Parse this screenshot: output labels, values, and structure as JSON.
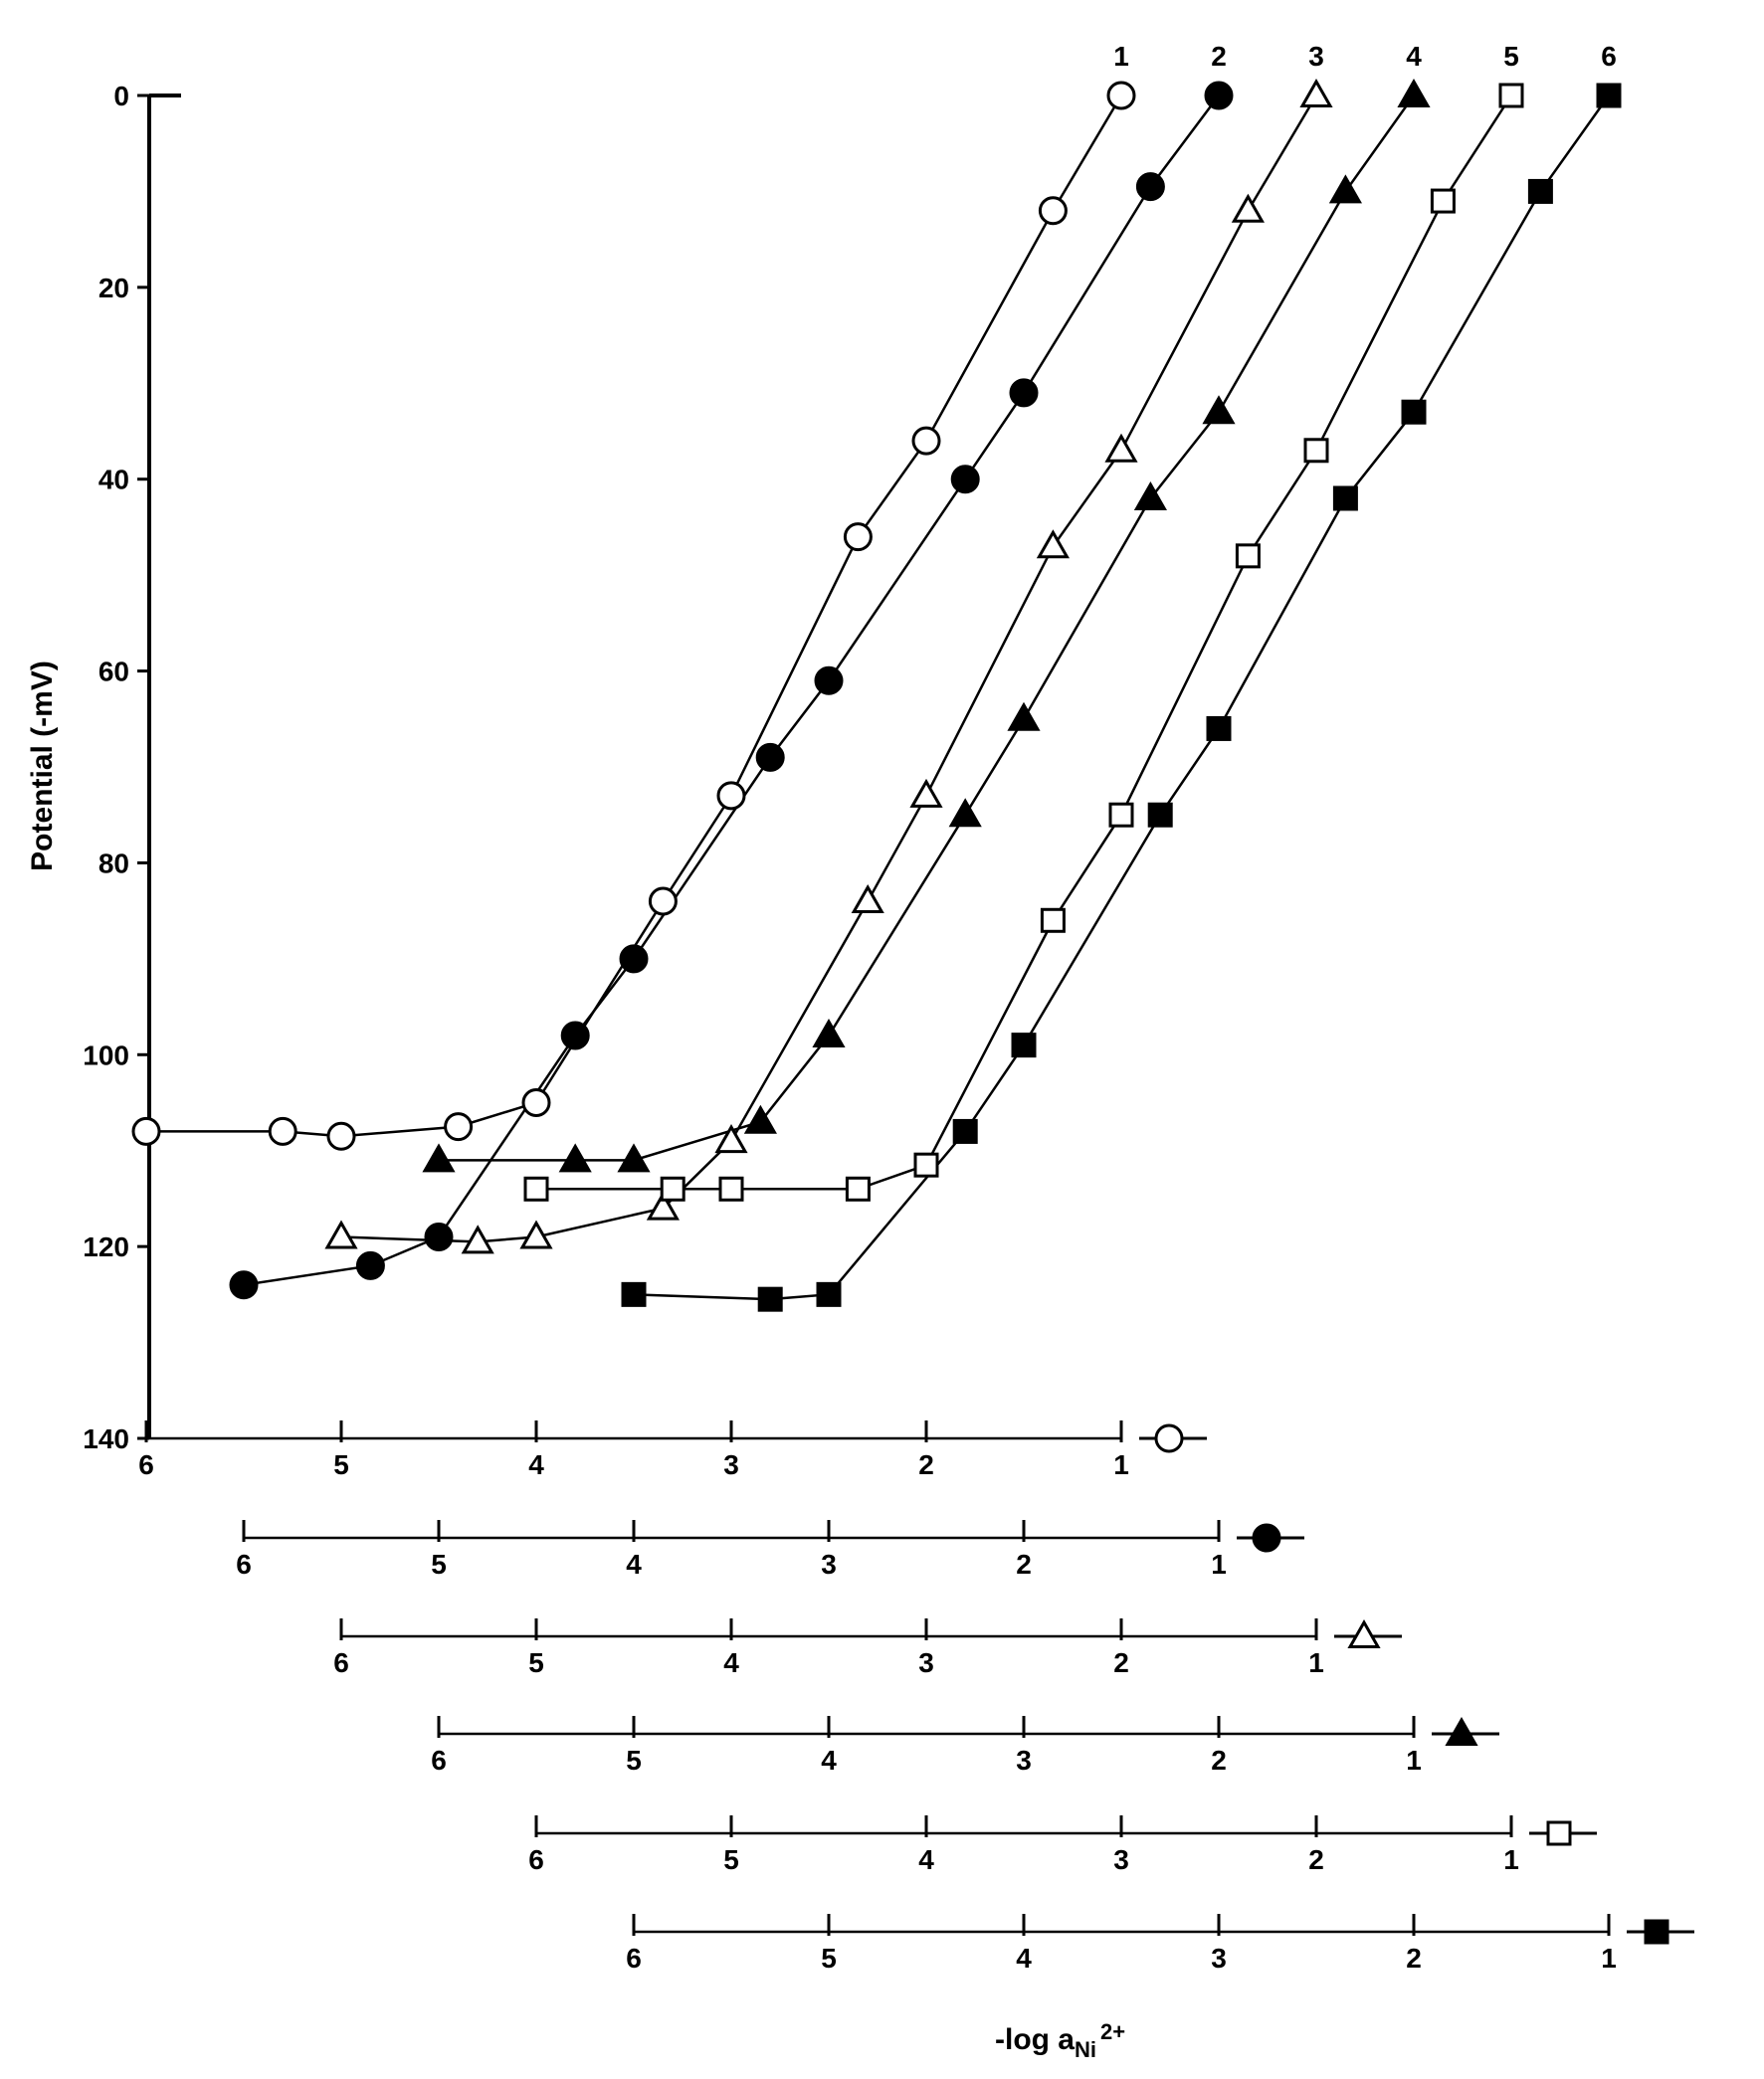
{
  "chart_data": {
    "type": "scatter",
    "title": "",
    "ylabel": "Potential (-mV)",
    "xlabel": "-log a",
    "xlabel_sub": "Ni",
    "xlabel_sup": "2+",
    "ylim": [
      0,
      140
    ],
    "y_ticks": [
      "0",
      "20",
      "40",
      "60",
      "80",
      "100",
      "120",
      "140"
    ],
    "grid": false,
    "legend": "symbols at right end of each x-axis scale",
    "series": [
      {
        "name": "1",
        "marker": "open-circle",
        "x_ticks": [
          "6",
          "5",
          "4",
          "3",
          "2",
          "1"
        ],
        "points": [
          [
            6.0,
            108
          ],
          [
            5.3,
            108
          ],
          [
            5.0,
            108.5
          ],
          [
            4.4,
            107.5
          ],
          [
            4.0,
            105
          ],
          [
            3.35,
            84
          ],
          [
            3.0,
            73
          ],
          [
            2.35,
            46
          ],
          [
            2.0,
            36
          ],
          [
            1.35,
            12
          ],
          [
            1.0,
            0
          ]
        ]
      },
      {
        "name": "2",
        "marker": "filled-circle",
        "x_ticks": [
          "6",
          "5",
          "4",
          "3",
          "2",
          "1"
        ],
        "points": [
          [
            6.0,
            124
          ],
          [
            5.35,
            122
          ],
          [
            5.0,
            119
          ],
          [
            4.3,
            98
          ],
          [
            4.0,
            90
          ],
          [
            3.3,
            69
          ],
          [
            3.0,
            61
          ],
          [
            2.3,
            40
          ],
          [
            2.0,
            31
          ],
          [
            1.35,
            9.5
          ],
          [
            1.0,
            0
          ]
        ]
      },
      {
        "name": "3",
        "marker": "open-triangle",
        "x_ticks": [
          "6",
          "5",
          "4",
          "3",
          "2",
          "1"
        ],
        "points": [
          [
            6.0,
            119
          ],
          [
            5.3,
            119.5
          ],
          [
            5.0,
            119
          ],
          [
            4.35,
            116
          ],
          [
            4.0,
            109
          ],
          [
            3.3,
            84
          ],
          [
            3.0,
            73
          ],
          [
            2.35,
            47
          ],
          [
            2.0,
            37
          ],
          [
            1.35,
            12
          ],
          [
            1.0,
            0
          ]
        ]
      },
      {
        "name": "4",
        "marker": "filled-triangle",
        "x_ticks": [
          "6",
          "5",
          "4",
          "3",
          "2",
          "1"
        ],
        "points": [
          [
            6.0,
            111
          ],
          [
            5.3,
            111
          ],
          [
            5.0,
            111
          ],
          [
            4.35,
            107
          ],
          [
            4.0,
            98
          ],
          [
            3.3,
            75
          ],
          [
            3.0,
            65
          ],
          [
            2.35,
            42
          ],
          [
            2.0,
            33
          ],
          [
            1.35,
            10
          ],
          [
            1.0,
            0
          ]
        ]
      },
      {
        "name": "5",
        "marker": "open-square",
        "x_ticks": [
          "6",
          "5",
          "4",
          "3",
          "2",
          "1"
        ],
        "points": [
          [
            6.0,
            114
          ],
          [
            5.3,
            114
          ],
          [
            5.0,
            114
          ],
          [
            4.35,
            114
          ],
          [
            4.0,
            111.5
          ],
          [
            3.35,
            86
          ],
          [
            3.0,
            75
          ],
          [
            2.35,
            48
          ],
          [
            2.0,
            37
          ],
          [
            1.35,
            11
          ],
          [
            1.0,
            0
          ]
        ]
      },
      {
        "name": "6",
        "marker": "filled-square",
        "x_ticks": [
          "6",
          "5",
          "4",
          "3",
          "2",
          "1"
        ],
        "points": [
          [
            6.0,
            125
          ],
          [
            5.3,
            125.5
          ],
          [
            5.0,
            125
          ],
          [
            4.3,
            108
          ],
          [
            4.0,
            99
          ],
          [
            3.3,
            75
          ],
          [
            3.0,
            66
          ],
          [
            2.35,
            42
          ],
          [
            2.0,
            33
          ],
          [
            1.35,
            10
          ],
          [
            1.0,
            0
          ]
        ]
      }
    ]
  }
}
